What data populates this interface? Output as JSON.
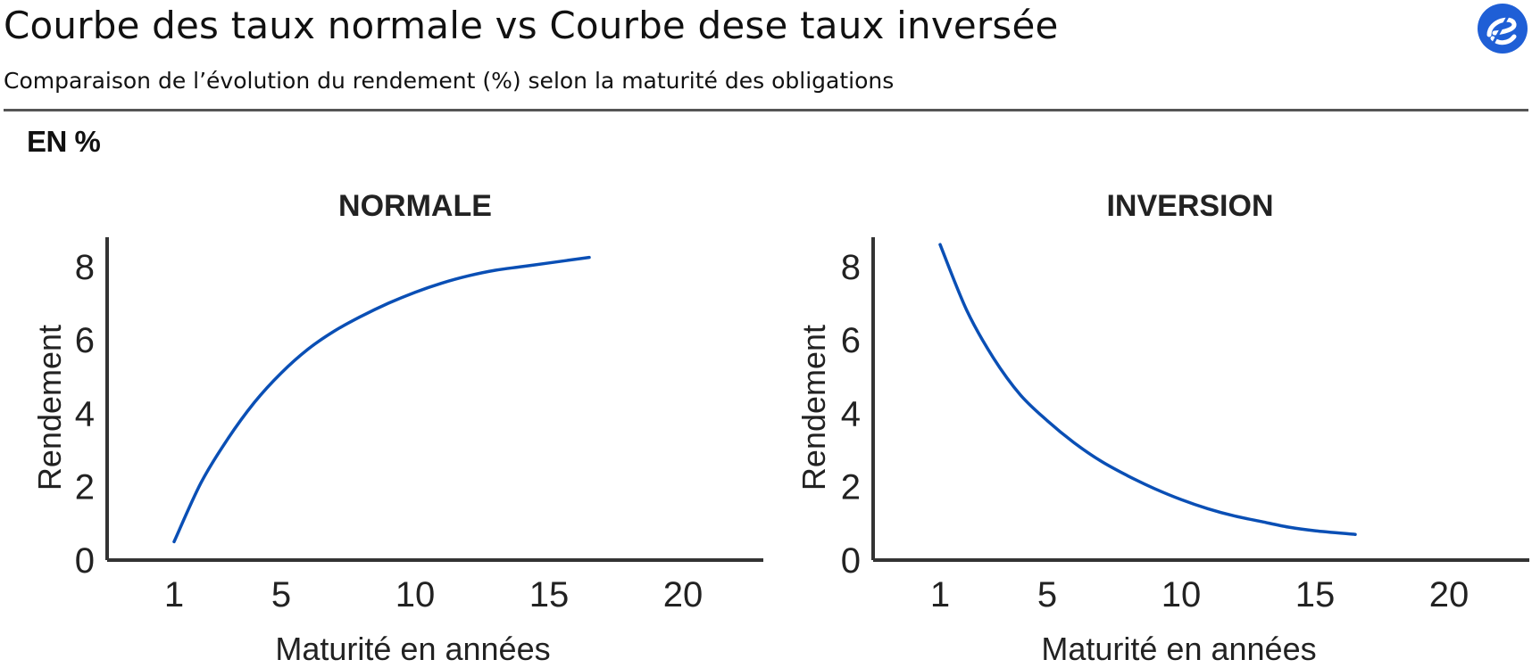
{
  "header": {
    "title": "Courbe des taux normale vs Courbe dese taux inversée",
    "subtitle": "Comparaison de l’évolution du rendement (%) selon la maturité des obligations",
    "unit_label": "EN %",
    "logo_icon": "e-logo-icon",
    "accent_color": "#1f5fd6"
  },
  "chart_data": [
    {
      "type": "line",
      "title": "NORMALE",
      "xlabel": "Maturité en années",
      "ylabel": "Rendement",
      "xlim": [
        -1.5,
        23
      ],
      "ylim": [
        0,
        8.8
      ],
      "xticks": [
        1,
        5,
        10,
        15,
        20
      ],
      "yticks": [
        0,
        2,
        4,
        6,
        8
      ],
      "grid": false,
      "line_color": "#0a4fb5",
      "series": [
        {
          "x": [
            1,
            2,
            3,
            4,
            5,
            6,
            7,
            8,
            9,
            10,
            11,
            12,
            13,
            14,
            15,
            16.5
          ],
          "values": [
            0.5,
            2.1,
            3.3,
            4.3,
            5.1,
            5.75,
            6.25,
            6.65,
            7.0,
            7.3,
            7.55,
            7.75,
            7.9,
            8.0,
            8.1,
            8.25
          ]
        }
      ]
    },
    {
      "type": "line",
      "title": "INVERSION",
      "xlabel": "Maturité en années",
      "ylabel": "Rendement",
      "xlim": [
        -1.5,
        23
      ],
      "ylim": [
        0,
        8.8
      ],
      "xticks": [
        1,
        5,
        10,
        15,
        20
      ],
      "yticks": [
        0,
        2,
        4,
        6,
        8
      ],
      "grid": false,
      "line_color": "#0a4fb5",
      "series": [
        {
          "x": [
            1,
            2,
            3,
            4,
            5,
            6,
            7,
            8,
            9,
            10,
            11,
            12,
            13,
            14,
            15,
            16.5
          ],
          "values": [
            8.6,
            6.8,
            5.5,
            4.5,
            3.8,
            3.2,
            2.7,
            2.3,
            1.95,
            1.65,
            1.4,
            1.2,
            1.05,
            0.9,
            0.8,
            0.7
          ]
        }
      ]
    }
  ]
}
